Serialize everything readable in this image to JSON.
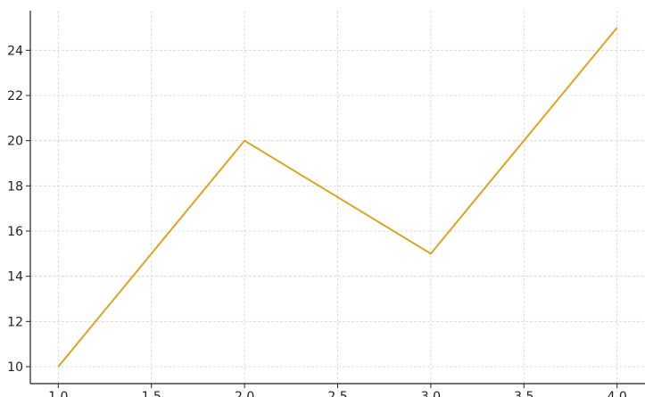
{
  "chart_data": {
    "type": "line",
    "title": "",
    "xlabel": "",
    "ylabel": "",
    "x": [
      1.0,
      2.0,
      3.0,
      4.0
    ],
    "series": [
      {
        "values": [
          10,
          20,
          15,
          25
        ],
        "color": "#daa520"
      }
    ],
    "xlim": [
      0.85,
      4.15
    ],
    "ylim": [
      9.25,
      25.75
    ],
    "xticks": [
      1.0,
      1.5,
      2.0,
      2.5,
      3.0,
      3.5,
      4.0
    ],
    "xtick_labels": [
      "1.0",
      "1.5",
      "2.0",
      "2.5",
      "3.0",
      "3.5",
      "4.0"
    ],
    "yticks": [
      10,
      12,
      14,
      16,
      18,
      20,
      22,
      24
    ],
    "ytick_labels": [
      "10",
      "12",
      "14",
      "16",
      "18",
      "20",
      "22",
      "24"
    ],
    "grid": true,
    "legend": "none"
  }
}
